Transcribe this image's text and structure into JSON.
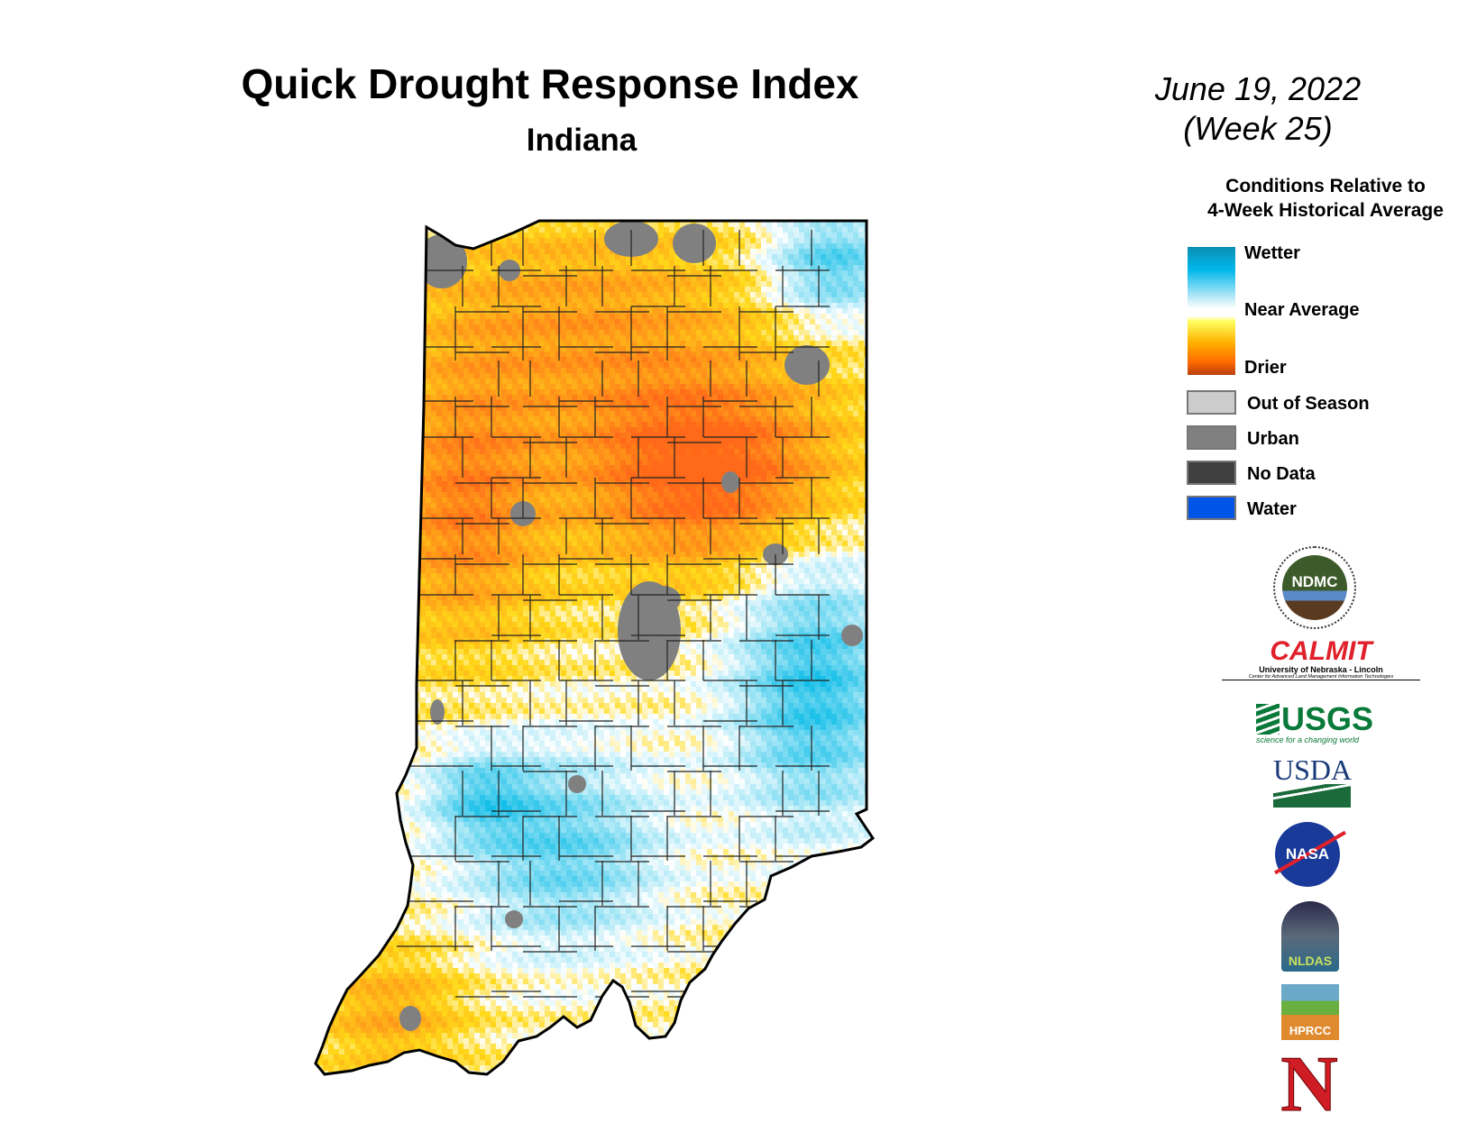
{
  "header": {
    "title": "Quick Drought Response Index",
    "subtitle": "Indiana",
    "date": "June 19, 2022",
    "week": "(Week 25)"
  },
  "legend": {
    "title_line1": "Conditions Relative to",
    "title_line2": "4-Week Historical Average",
    "scale": [
      {
        "label": "Wetter",
        "color": "#00b4e6"
      },
      {
        "label": "Near Average",
        "color": "#ffffff"
      },
      {
        "label": "Drier",
        "color": "#c83c00"
      }
    ],
    "categories": [
      {
        "label": "Out of Season",
        "color": "#cccccc"
      },
      {
        "label": "Urban",
        "color": "#808080"
      },
      {
        "label": "No Data",
        "color": "#404040"
      },
      {
        "label": "Water",
        "color": "#0055e6"
      }
    ]
  },
  "logos": {
    "ndmc": {
      "text": "NDMC",
      "ring_top": "NATIONAL DROUGHT MITIGATION CENTER",
      "ring_bottom": "UNIVERSITY OF NEBRASKA"
    },
    "calmit": {
      "text": "CALMIT",
      "line1": "University of Nebraska - Lincoln",
      "line2": "Center for Advanced Land Management Information Technologies"
    },
    "usgs": {
      "text": "USGS",
      "tagline": "science for a changing world"
    },
    "usda": {
      "text": "USDA"
    },
    "nasa": {
      "text": "NASA"
    },
    "nldas": {
      "text": "NLDAS"
    },
    "hprcc": {
      "text": "HPRCC"
    },
    "nebraska": {
      "text": "N"
    }
  }
}
